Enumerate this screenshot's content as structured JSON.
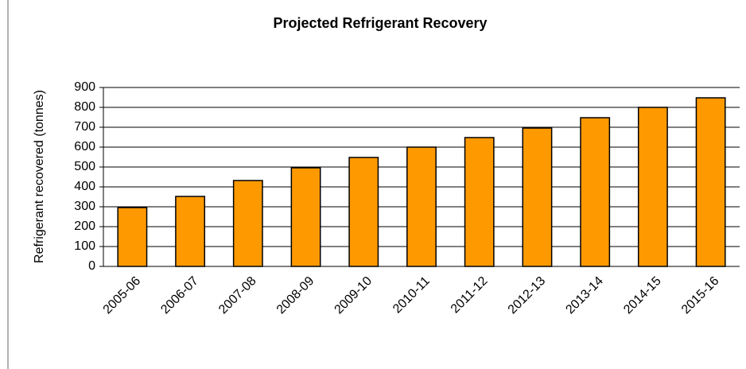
{
  "chart_data": {
    "type": "bar",
    "title": "Projected Refrigerant Recovery",
    "y_label": "Refrigerant recovered  (tonnes)",
    "categories": [
      "2005-06",
      "2006-07",
      "2007-08",
      "2008-09",
      "2009-10",
      "2010-11",
      "2011-12",
      "2012-13",
      "2013-14",
      "2014-15",
      "2015-16"
    ],
    "values": [
      296,
      352,
      432,
      496,
      548,
      600,
      648,
      696,
      748,
      800,
      848
    ],
    "color": "#ff9900",
    "ylim": [
      0,
      900
    ],
    "yticks": [
      0,
      100,
      200,
      300,
      400,
      500,
      600,
      700,
      800,
      900
    ],
    "grid": true
  }
}
